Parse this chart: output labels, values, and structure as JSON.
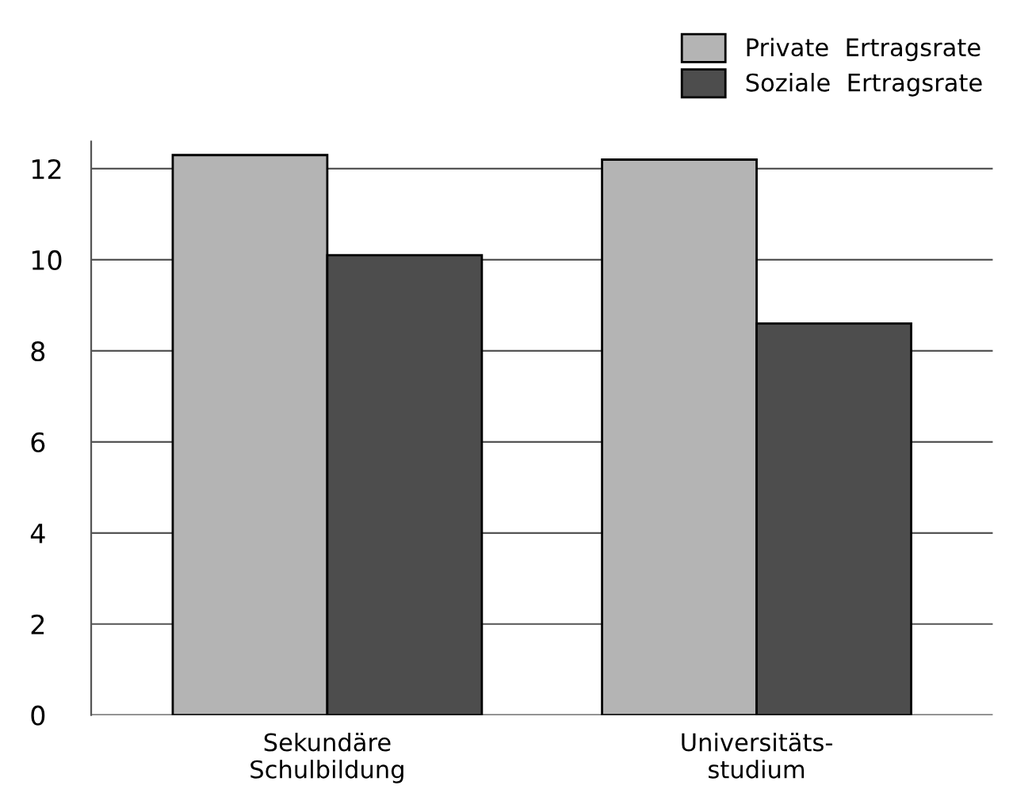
{
  "chart_data": {
    "type": "bar",
    "categories": [
      "Sekundäre\nSchulbildung",
      "Universitäts-\nstudium"
    ],
    "series": [
      {
        "name": "Private  Ertragsrate",
        "color": "#b4b4b4",
        "values": [
          12.3,
          12.2
        ]
      },
      {
        "name": "Soziale  Ertragsrate",
        "color": "#4d4d4d",
        "values": [
          10.1,
          8.6
        ]
      }
    ],
    "ylim": [
      0,
      12.6
    ],
    "yticks": [
      0,
      2,
      4,
      6,
      8,
      10,
      12
    ],
    "grid": "y",
    "legend": "top right"
  }
}
